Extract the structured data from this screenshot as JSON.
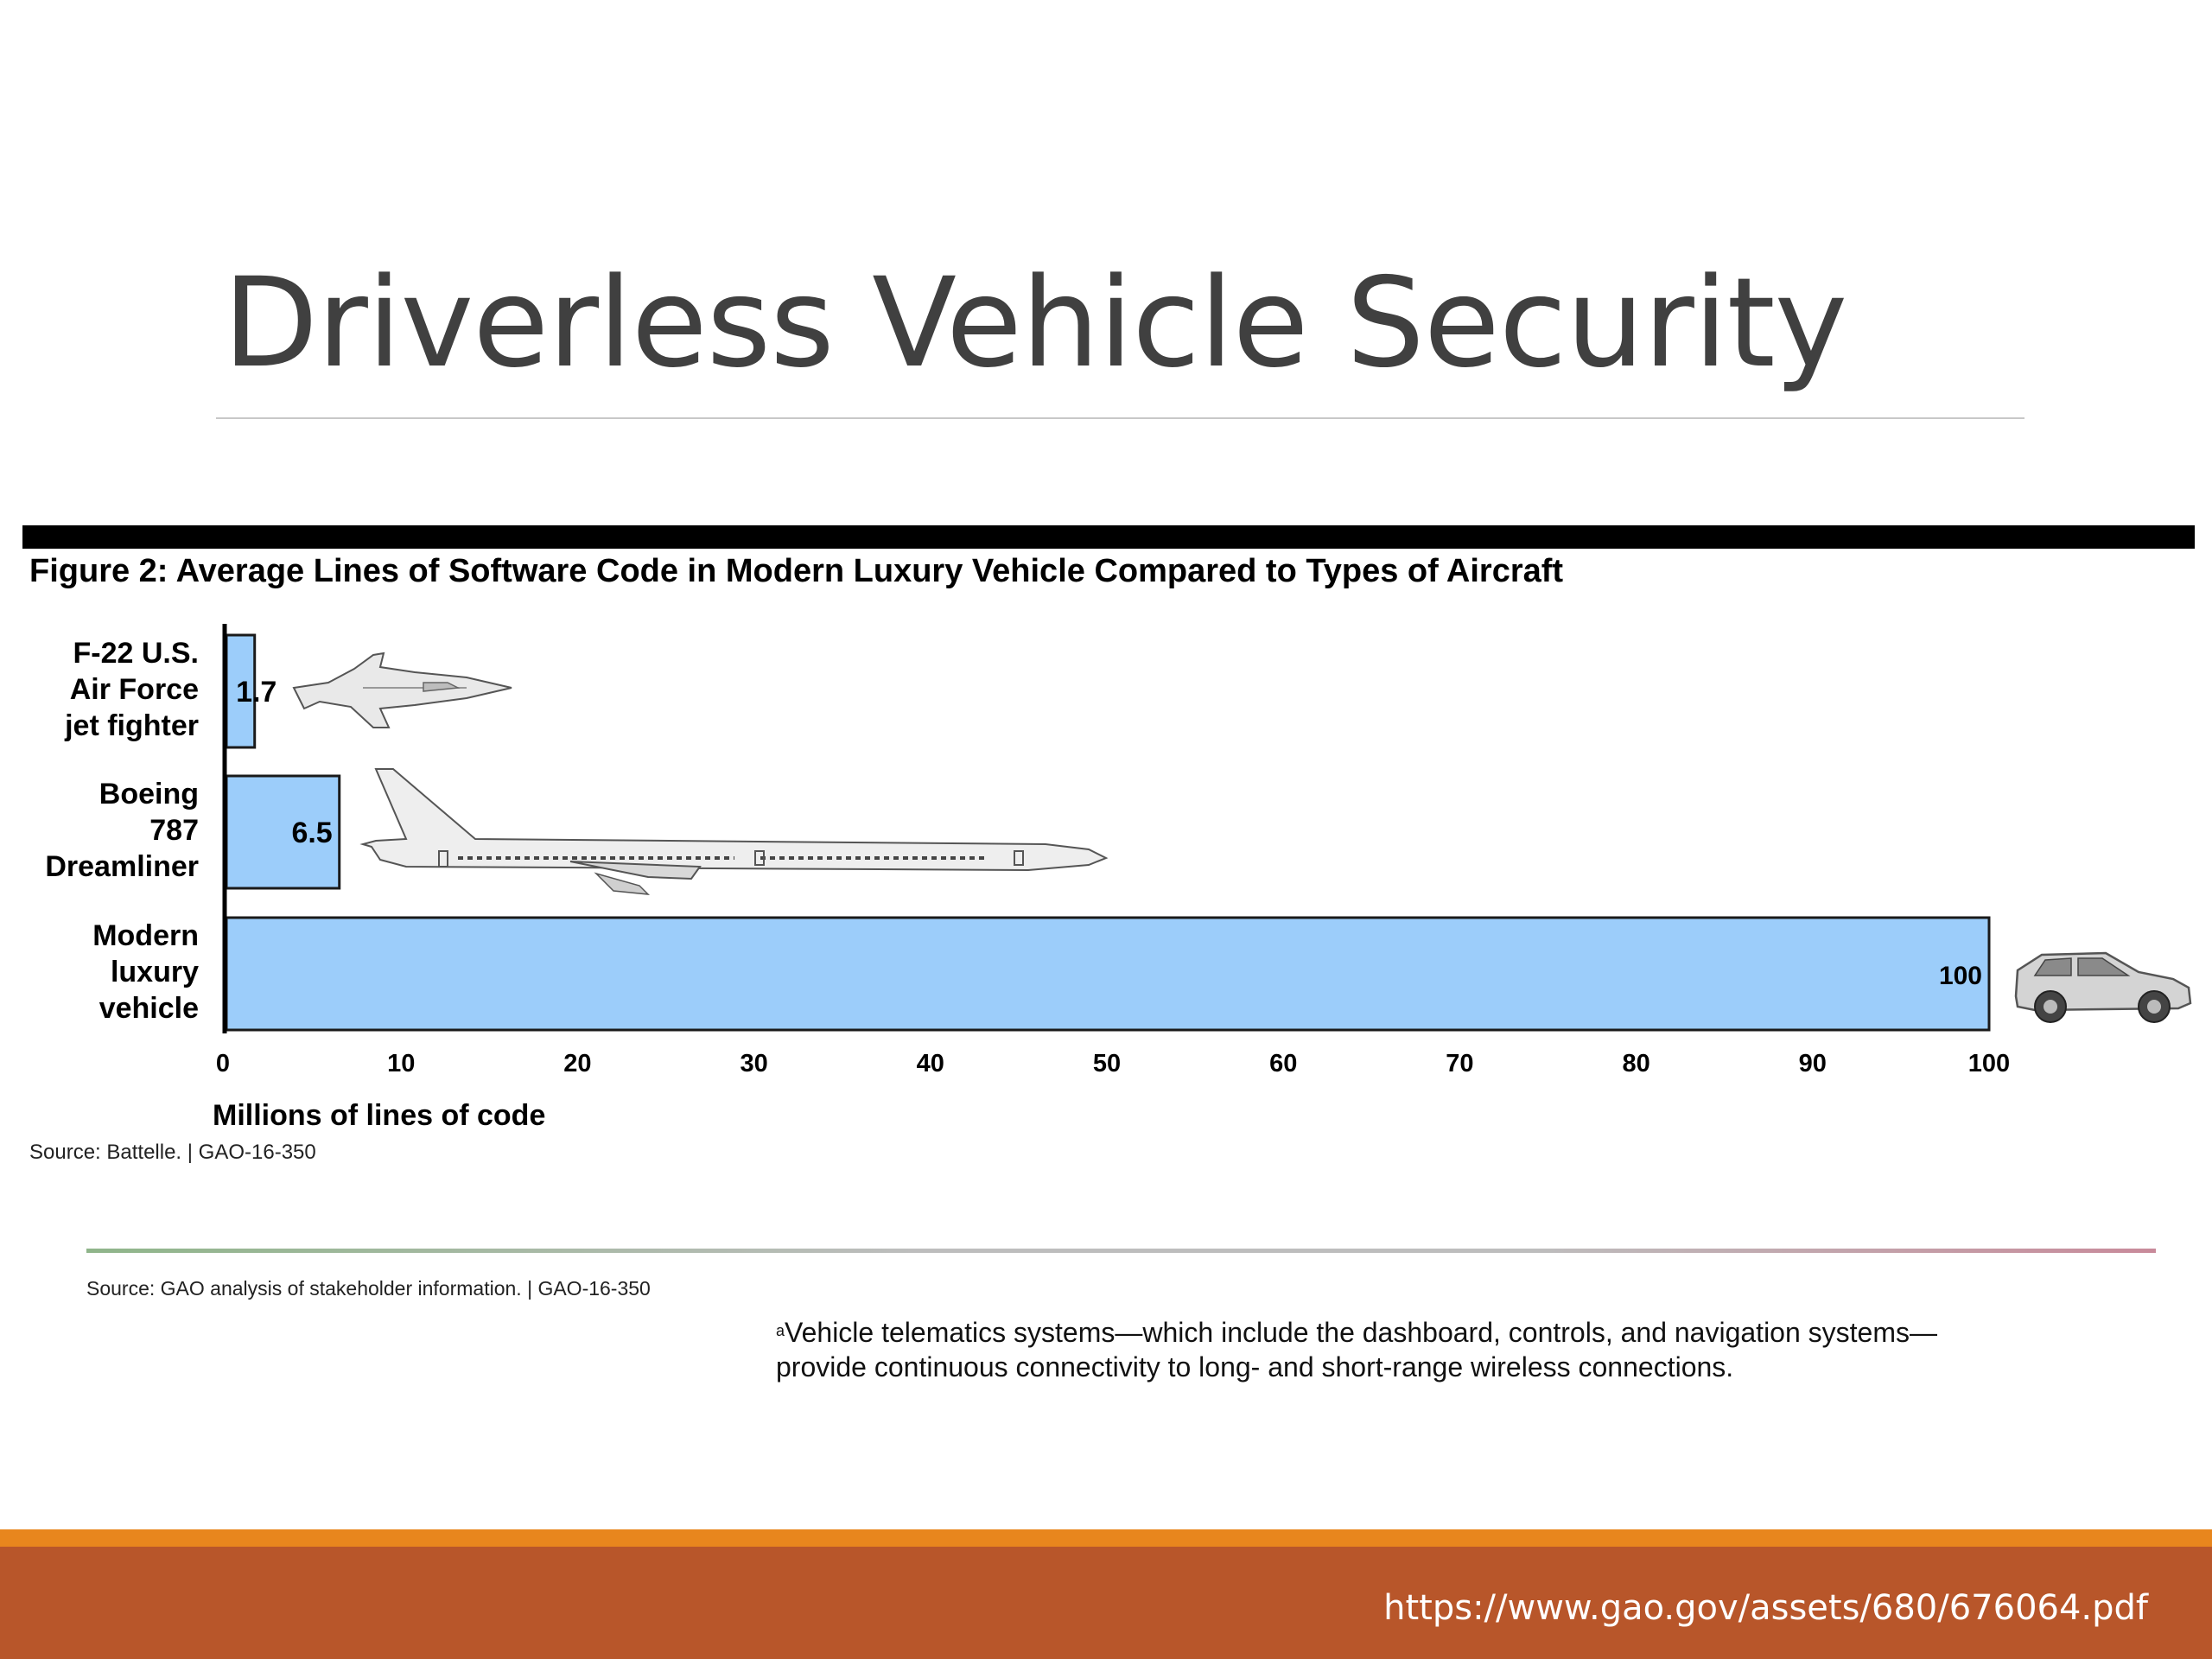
{
  "slide": {
    "title": "Driverless Vehicle Security",
    "url": "https://www.gao.gov/assets/680/676064.pdf"
  },
  "figure": {
    "source": "Source: Battelle.  |  GAO-16-350"
  },
  "notes": {
    "source2": "Source: GAO analysis of stakeholder information.  |  GAO-16-350",
    "footnote_mark": "a",
    "footnote_line1": "Vehicle telematics systems—which include the dashboard, controls, and navigation systems—",
    "footnote_line2": "provide continuous connectivity to long- and short-range wireless connections."
  },
  "colors": {
    "bar_fill": "#9ccdfa",
    "bar_stroke": "#1a1a1a",
    "footer_band": "#b8562a",
    "footer_stripe": "#e8861d"
  },
  "icons": [
    "jet-fighter-icon",
    "airliner-icon",
    "suv-icon"
  ],
  "chart_data": {
    "type": "bar",
    "orientation": "horizontal",
    "title": "Figure 2: Average Lines of Software Code in Modern Luxury Vehicle Compared to Types of Aircraft",
    "xlabel": "Millions of lines of code",
    "xlim": [
      0,
      100
    ],
    "xticks": [
      0,
      10,
      20,
      30,
      40,
      50,
      60,
      70,
      80,
      90,
      100
    ],
    "categories": [
      [
        "F-22 U.S.",
        "Air Force",
        "jet fighter"
      ],
      [
        "Boeing",
        "787",
        "Dreamliner"
      ],
      [
        "Modern",
        "luxury",
        "vehicle"
      ]
    ],
    "values": [
      1.7,
      6.5,
      100
    ],
    "value_labels": [
      "1.7",
      "6.5",
      "100"
    ],
    "grid": false,
    "legend": "none"
  }
}
